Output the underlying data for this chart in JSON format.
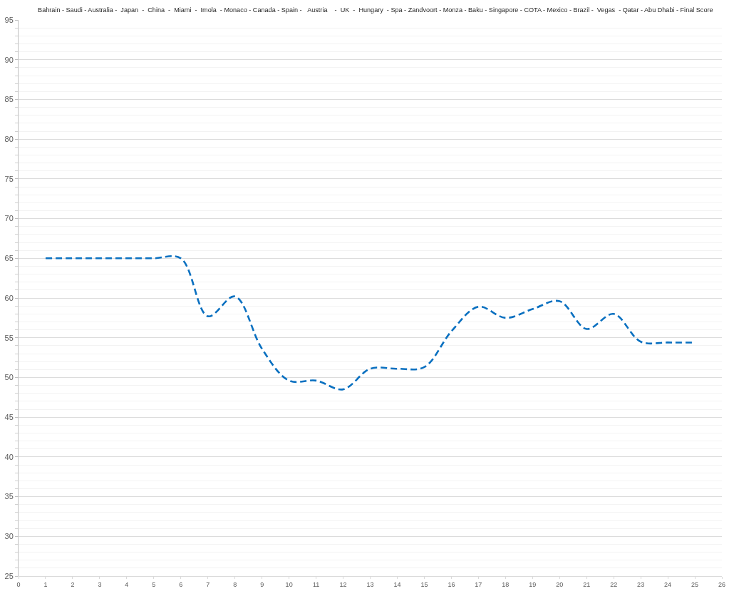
{
  "chart_data": {
    "type": "line",
    "title": "Bahrain - Saudi - Australia -  Japan  -  China  -  Miami  -  Imola  - Monaco - Canada - Spain -   Austria    -  UK  -  Hungary  - Spa - Zandvoort - Monza - Baku - Singapore - COTA - Mexico - Brazil -  Vegas  - Qatar - Abu Dhabi - Final Score",
    "x": [
      1,
      2,
      3,
      4,
      5,
      6,
      7,
      8,
      9,
      10,
      11,
      12,
      13,
      14,
      15,
      16,
      17,
      18,
      19,
      20,
      21,
      22,
      23,
      24,
      25
    ],
    "series": [
      {
        "color": "#0a70c0",
        "values": [
          65,
          65,
          65,
          65,
          65,
          65,
          57.7,
          60.2,
          53.6,
          49.6,
          49.6,
          48.5,
          51.1,
          51.1,
          51.3,
          55.8,
          58.9,
          57.5,
          58.6,
          59.6,
          56.1,
          58.0,
          54.5,
          54.4,
          54.4
        ]
      }
    ],
    "xlim": [
      0,
      26
    ],
    "xticks": [
      0,
      1,
      2,
      3,
      4,
      5,
      6,
      7,
      8,
      9,
      10,
      11,
      12,
      13,
      14,
      15,
      16,
      17,
      18,
      19,
      20,
      21,
      22,
      23,
      24,
      25,
      26
    ],
    "ylim": [
      25,
      95
    ],
    "yticks": [
      25,
      {
        "value": 26,
        "label": null
      },
      {
        "value": 27,
        "label": null
      },
      {
        "value": 28,
        "label": null
      },
      {
        "value": 29,
        "label": null
      },
      30,
      {
        "value": 31,
        "label": null
      },
      {
        "value": 32,
        "label": null
      },
      {
        "value": 33,
        "label": null
      },
      {
        "value": 34,
        "label": null
      },
      35,
      {
        "value": 36,
        "label": null
      },
      {
        "value": 37,
        "label": null
      },
      {
        "value": 38,
        "label": null
      },
      {
        "value": 39,
        "label": null
      },
      40,
      {
        "value": 41,
        "label": null
      },
      {
        "value": 42,
        "label": null
      },
      {
        "value": 43,
        "label": null
      },
      {
        "value": 44,
        "label": null
      },
      45,
      {
        "value": 46,
        "label": null
      },
      {
        "value": 47,
        "label": null
      },
      {
        "value": 48,
        "label": null
      },
      {
        "value": 49,
        "label": null
      },
      50,
      {
        "value": 51,
        "label": null
      },
      {
        "value": 52,
        "label": null
      },
      {
        "value": 53,
        "label": null
      },
      {
        "value": 54,
        "label": null
      },
      55,
      {
        "value": 56,
        "label": null
      },
      {
        "value": 57,
        "label": null
      },
      {
        "value": 58,
        "label": null
      },
      {
        "value": 59,
        "label": null
      },
      60,
      {
        "value": 61,
        "label": null
      },
      {
        "value": 62,
        "label": null
      },
      {
        "value": 63,
        "label": null
      },
      {
        "value": 64,
        "label": null
      },
      65,
      {
        "value": 66,
        "label": null
      },
      {
        "value": 67,
        "label": null
      },
      {
        "value": 68,
        "label": null
      },
      {
        "value": 69,
        "label": null
      },
      70,
      {
        "value": 71,
        "label": null
      },
      {
        "value": 72,
        "label": null
      },
      {
        "value": 73,
        "label": null
      },
      {
        "value": 74,
        "label": null
      },
      75,
      {
        "value": 76,
        "label": null
      },
      {
        "value": 77,
        "label": null
      },
      {
        "value": 78,
        "label": null
      },
      {
        "value": 79,
        "label": null
      },
      80,
      {
        "value": 81,
        "label": null
      },
      {
        "value": 82,
        "label": null
      },
      {
        "value": 83,
        "label": null
      },
      {
        "value": 84,
        "label": null
      },
      85,
      {
        "value": 86,
        "label": null
      },
      {
        "value": 87,
        "label": null
      },
      {
        "value": 88,
        "label": null
      },
      {
        "value": 89,
        "label": null
      },
      90,
      {
        "value": 91,
        "label": null
      },
      {
        "value": 92,
        "label": null
      },
      {
        "value": 93,
        "label": null
      },
      {
        "value": 94,
        "label": null
      },
      95
    ],
    "grid": "y",
    "line_style": "dashed"
  }
}
